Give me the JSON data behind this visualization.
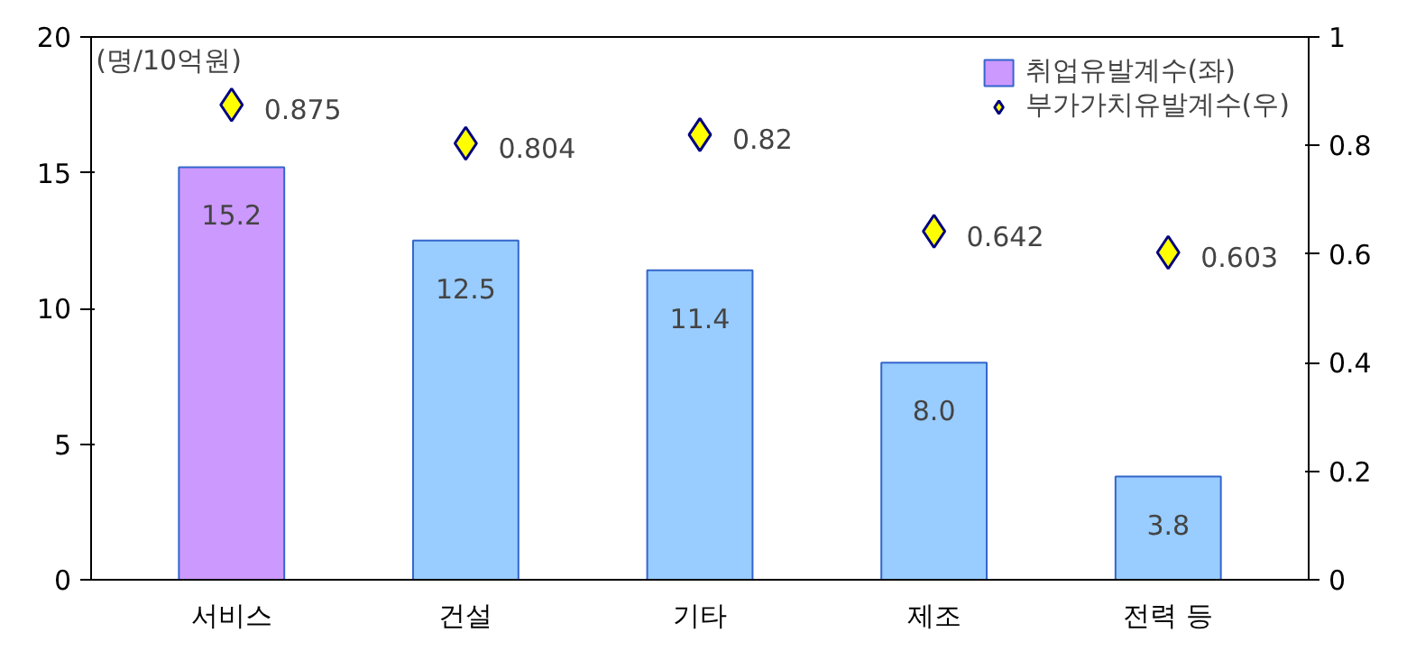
{
  "chart_data": {
    "type": "bar",
    "categories": [
      "서비스",
      "건설",
      "기타",
      "제조",
      "전력 등"
    ],
    "ylabel": "(명/10억원)",
    "series": [
      {
        "name": "취업유발계수(좌)",
        "value_labels": [
          "15.2",
          "12.5",
          "11.4",
          "8.0",
          "3.8"
        ],
        "colors": [
          "#cc99ff",
          null,
          null,
          null,
          null
        ],
        "color": "#99ccff",
        "values": [
          15.2,
          12.5,
          11.4,
          8.0,
          3.8
        ]
      },
      {
        "name": "부가가치유발계수(우)",
        "type": "scatter",
        "axis": "y2",
        "marker": "diamond",
        "color": "#ffff00",
        "values": [
          0.875,
          0.804,
          0.82,
          0.642,
          0.603
        ]
      }
    ],
    "ylim": [
      0,
      20
    ],
    "yticks": [
      0,
      5,
      10,
      15,
      20
    ],
    "y2lim": [
      0,
      1
    ],
    "y2ticks": [
      0,
      0.2,
      0.4,
      0.6,
      0.8,
      1
    ],
    "data_labels": true,
    "grid": false,
    "legend": "top right"
  }
}
